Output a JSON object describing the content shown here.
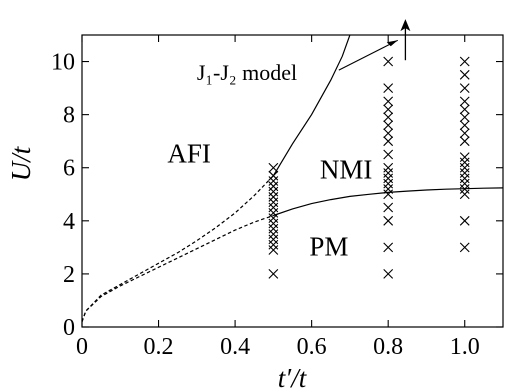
{
  "chart_data": {
    "type": "scatter",
    "xlabel": "t′/t",
    "ylabel": "U/t",
    "xlim": [
      0,
      1.1
    ],
    "ylim": [
      0,
      11
    ],
    "x_ticks": [
      {
        "value": 0,
        "label": "0"
      },
      {
        "value": 0.2,
        "label": "0.2"
      },
      {
        "value": 0.4,
        "label": "0.4"
      },
      {
        "value": 0.6,
        "label": "0.6"
      },
      {
        "value": 0.8,
        "label": "0.8"
      },
      {
        "value": 1.0,
        "label": "1.0"
      }
    ],
    "y_ticks": [
      {
        "value": 0,
        "label": "0"
      },
      {
        "value": 2,
        "label": "2"
      },
      {
        "value": 4,
        "label": "4"
      },
      {
        "value": 6,
        "label": "6"
      },
      {
        "value": 8,
        "label": "8"
      },
      {
        "value": 10,
        "label": "10"
      }
    ],
    "grid": false,
    "regions": [
      {
        "label": "AFI",
        "x": 0.28,
        "y": 6.2
      },
      {
        "label": "NMI",
        "x": 0.69,
        "y": 5.6
      },
      {
        "label": "PM",
        "x": 0.645,
        "y": 2.7
      }
    ],
    "annotation": {
      "text": "J₁-J₂ model",
      "point_to": {
        "x": 0.825,
        "y": 10.8
      },
      "text_at": {
        "x": 0.3,
        "y": 9.3
      }
    },
    "arrow": {
      "x": 0.845,
      "y_from": 10.05,
      "y_to": 11.6
    },
    "markers": {
      "symbol": "x",
      "points": [
        {
          "x": 0.5,
          "y": [
            2,
            2.9,
            3.1,
            3.3,
            3.5,
            3.7,
            3.9,
            4.1,
            4.3,
            4.5,
            4.7,
            4.9,
            5.1,
            5.3,
            5.5,
            5.7,
            6.0
          ]
        },
        {
          "x": 0.8,
          "y": [
            2,
            3,
            4,
            4.5,
            5,
            5.2,
            5.4,
            5.6,
            5.8,
            6,
            6.5,
            7,
            7.3,
            7.6,
            7.9,
            8.2,
            8.5,
            9,
            10
          ]
        },
        {
          "x": 1.0,
          "y": [
            3,
            4,
            5,
            5.2,
            5.4,
            5.6,
            5.8,
            6,
            6.2,
            6.4,
            7,
            7.3,
            7.6,
            7.9,
            8.2,
            8.5,
            9,
            9.5,
            10
          ]
        }
      ]
    },
    "series": [
      {
        "style": "solid",
        "x": [
          0.5,
          0.55,
          0.6,
          0.65,
          0.68,
          0.7
        ],
        "y": [
          5.7,
          6.9,
          8.0,
          9.3,
          10.2,
          11.0
        ]
      },
      {
        "style": "dashed",
        "x": [
          0.0,
          0.01,
          0.05,
          0.1,
          0.15,
          0.2,
          0.25,
          0.3,
          0.35,
          0.4,
          0.45,
          0.5
        ],
        "y": [
          0.2,
          0.6,
          1.2,
          1.6,
          2.0,
          2.4,
          2.8,
          3.25,
          3.75,
          4.3,
          4.95,
          5.7
        ]
      },
      {
        "style": "dashed",
        "x": [
          0.0,
          0.01,
          0.05,
          0.1,
          0.15,
          0.2,
          0.25,
          0.3,
          0.35,
          0.4,
          0.45,
          0.5
        ],
        "y": [
          0.2,
          0.6,
          1.15,
          1.55,
          1.9,
          2.25,
          2.6,
          2.95,
          3.3,
          3.65,
          3.95,
          4.2
        ]
      },
      {
        "style": "solid",
        "x": [
          0.5,
          0.55,
          0.6,
          0.65,
          0.7,
          0.75,
          0.8,
          0.85,
          0.9,
          0.95,
          1.0,
          1.05,
          1.1
        ],
        "y": [
          4.2,
          4.45,
          4.65,
          4.8,
          4.92,
          5.0,
          5.07,
          5.12,
          5.16,
          5.19,
          5.21,
          5.23,
          5.24
        ]
      }
    ]
  }
}
